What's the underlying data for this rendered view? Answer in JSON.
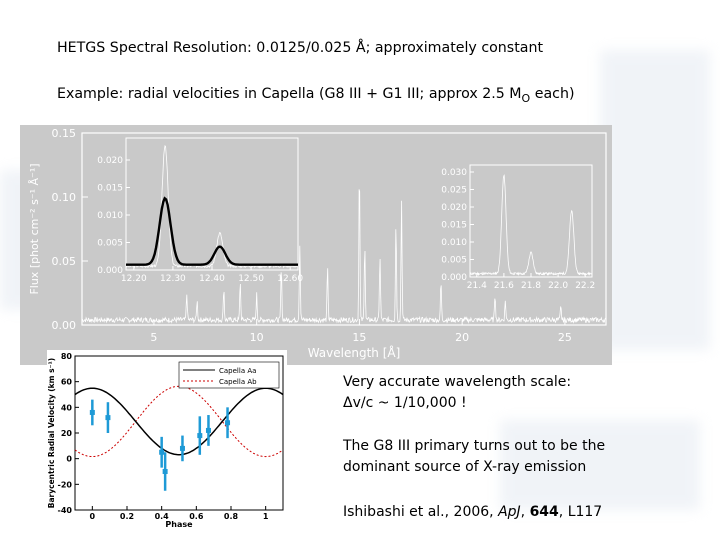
{
  "slide": {
    "line1_prefix": "HETGS Spectral Resolution: 0.0125/0.025 ",
    "line1_unit": "Å",
    "line1_suffix": "; approximately constant",
    "line2_prefix": "Example: radial velocities in Capella (G8 III + G1 III; approx 2.5 M",
    "line2_sub": "O",
    "line2_suffix": " each)",
    "note1_a": "Very accurate wavelength scale:",
    "note1_b": "Δv/c ~ 1/10,000 !",
    "note2_a": "The G8 III primary turns out to be the",
    "note2_b": "dominant source of X-ray emission",
    "note3_a": "Ishibashi  et al., 2006, ",
    "note3_journal": "ApJ",
    "note3_sep": ", ",
    "note3_vol": "644",
    "note3_page": ", L117"
  },
  "chart_data": [
    {
      "type": "line",
      "xlabel": "Wavelength [Å]",
      "ylabel": "Flux [phot cm⁻² s⁻¹ Å⁻¹]",
      "xlim": [
        1.5,
        27
      ],
      "ylim": [
        0,
        0.15
      ],
      "x_ticks": [
        "5",
        "10",
        "15",
        "20",
        "25"
      ],
      "y_ticks": [
        "0.00",
        "0.05",
        "0.10",
        "0.15"
      ],
      "peaks": [
        {
          "x": 6.6,
          "y": 0.02
        },
        {
          "x": 7.1,
          "y": 0.015
        },
        {
          "x": 8.4,
          "y": 0.025
        },
        {
          "x": 9.2,
          "y": 0.03
        },
        {
          "x": 10.0,
          "y": 0.02
        },
        {
          "x": 11.2,
          "y": 0.04
        },
        {
          "x": 12.1,
          "y": 0.06
        },
        {
          "x": 13.45,
          "y": 0.04
        },
        {
          "x": 15.0,
          "y": 0.12
        },
        {
          "x": 15.26,
          "y": 0.06
        },
        {
          "x": 16.0,
          "y": 0.05
        },
        {
          "x": 16.78,
          "y": 0.075
        },
        {
          "x": 17.05,
          "y": 0.095
        },
        {
          "x": 18.97,
          "y": 0.03
        },
        {
          "x": 21.6,
          "y": 0.02
        },
        {
          "x": 22.1,
          "y": 0.015
        },
        {
          "x": 24.8,
          "y": 0.01
        }
      ],
      "inset_left": {
        "xlim": [
          12.18,
          12.62
        ],
        "ylim": [
          0,
          0.024
        ],
        "x_ticks": [
          "12.20",
          "12.30",
          "12.40",
          "12.50",
          "12.60"
        ],
        "y_ticks": [
          "0.000",
          "0.005",
          "0.010",
          "0.015",
          "0.020"
        ],
        "peaks": [
          {
            "x": 12.28,
            "y": 0.022
          },
          {
            "x": 12.42,
            "y": 0.006
          }
        ]
      },
      "inset_right": {
        "xlim": [
          21.35,
          22.25
        ],
        "ylim": [
          0,
          0.032
        ],
        "x_ticks": [
          "21.4",
          "21.6",
          "21.8",
          "22.0",
          "22.2"
        ],
        "y_ticks": [
          "0.000",
          "0.005",
          "0.010",
          "0.015",
          "0.020",
          "0.025",
          "0.030"
        ],
        "peaks": [
          {
            "x": 21.6,
            "y": 0.028
          },
          {
            "x": 21.8,
            "y": 0.006
          },
          {
            "x": 22.1,
            "y": 0.018
          }
        ]
      }
    },
    {
      "type": "scatter",
      "xlabel": "Phase",
      "ylabel": "Barycentric Radial Velocity (km s⁻¹)",
      "xlim": [
        -0.1,
        1.1
      ],
      "ylim": [
        -40,
        80
      ],
      "x_ticks": [
        "0",
        "0.2",
        "0.4",
        "0.6",
        "0.8",
        "1"
      ],
      "y_ticks": [
        "80",
        "60",
        "40",
        "20",
        "0",
        "-20",
        "-40"
      ],
      "gamma": 29,
      "K_Aa": 25.9,
      "K_Ab": 27.4,
      "legend": [
        "Capella Aa",
        "Capella Ab"
      ],
      "series_colors": {
        "Aa": "#000000",
        "Ab": "#cc0000",
        "points": "#1e9ad6"
      },
      "points": [
        {
          "x": 0.0,
          "y": 36,
          "err": 10
        },
        {
          "x": 0.09,
          "y": 32,
          "err": 12
        },
        {
          "x": 0.4,
          "y": 5,
          "err": 12
        },
        {
          "x": 0.42,
          "y": -10,
          "err": 15
        },
        {
          "x": 0.52,
          "y": 8,
          "err": 10
        },
        {
          "x": 0.62,
          "y": 18,
          "err": 15
        },
        {
          "x": 0.67,
          "y": 22,
          "err": 12
        },
        {
          "x": 0.78,
          "y": 28,
          "err": 12
        }
      ]
    }
  ]
}
